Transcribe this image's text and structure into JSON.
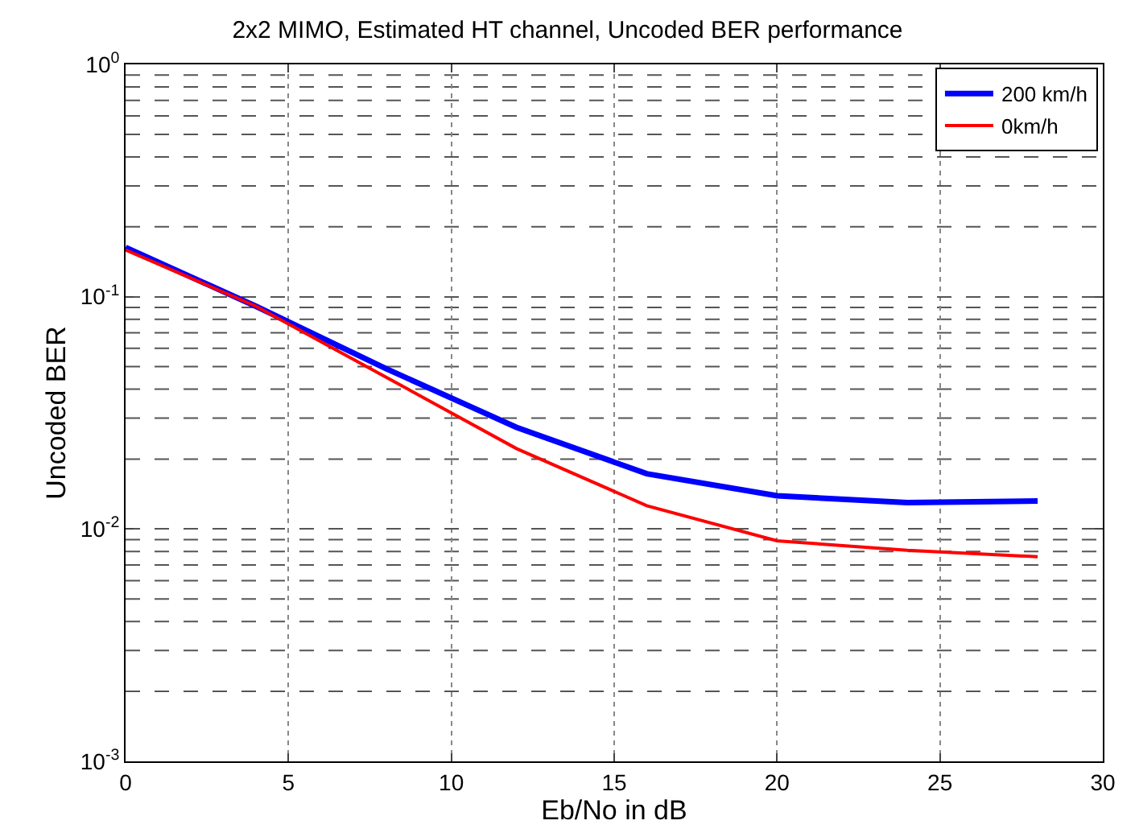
{
  "chart_data": {
    "type": "line",
    "title": "2x2 MIMO, Estimated HT channel, Uncoded BER performance",
    "xlabel": "Eb/No in dB",
    "ylabel": "Uncoded BER",
    "x": [
      0,
      4,
      8,
      12,
      16,
      20,
      24,
      28
    ],
    "series": [
      {
        "name": "200 km/h",
        "color": "#0000ff",
        "values": [
          0.163,
          0.091,
          0.049,
          0.0274,
          0.0173,
          0.0139,
          0.013,
          0.0132
        ]
      },
      {
        "name": "0km/h",
        "color": "#ff0000",
        "values": [
          0.159,
          0.091,
          0.045,
          0.0222,
          0.0126,
          0.0089,
          0.0081,
          0.0076
        ]
      }
    ],
    "log": "y",
    "xlim": [
      0,
      30
    ],
    "xticks": [
      0,
      5,
      10,
      15,
      20,
      25,
      30
    ],
    "ylim": [
      0.001,
      1
    ],
    "yticks": [
      {
        "value": 0.001,
        "label": "10$^{-3}$"
      },
      {
        "value": 0.01,
        "label": "10$^{-2}$"
      },
      {
        "value": 0.1,
        "label": "10$^{-1}$"
      },
      {
        "value": 1,
        "label": "10$^{0}$"
      }
    ],
    "grid": true,
    "legend": "top right",
    "marker": "none",
    "line_style": "solid"
  }
}
